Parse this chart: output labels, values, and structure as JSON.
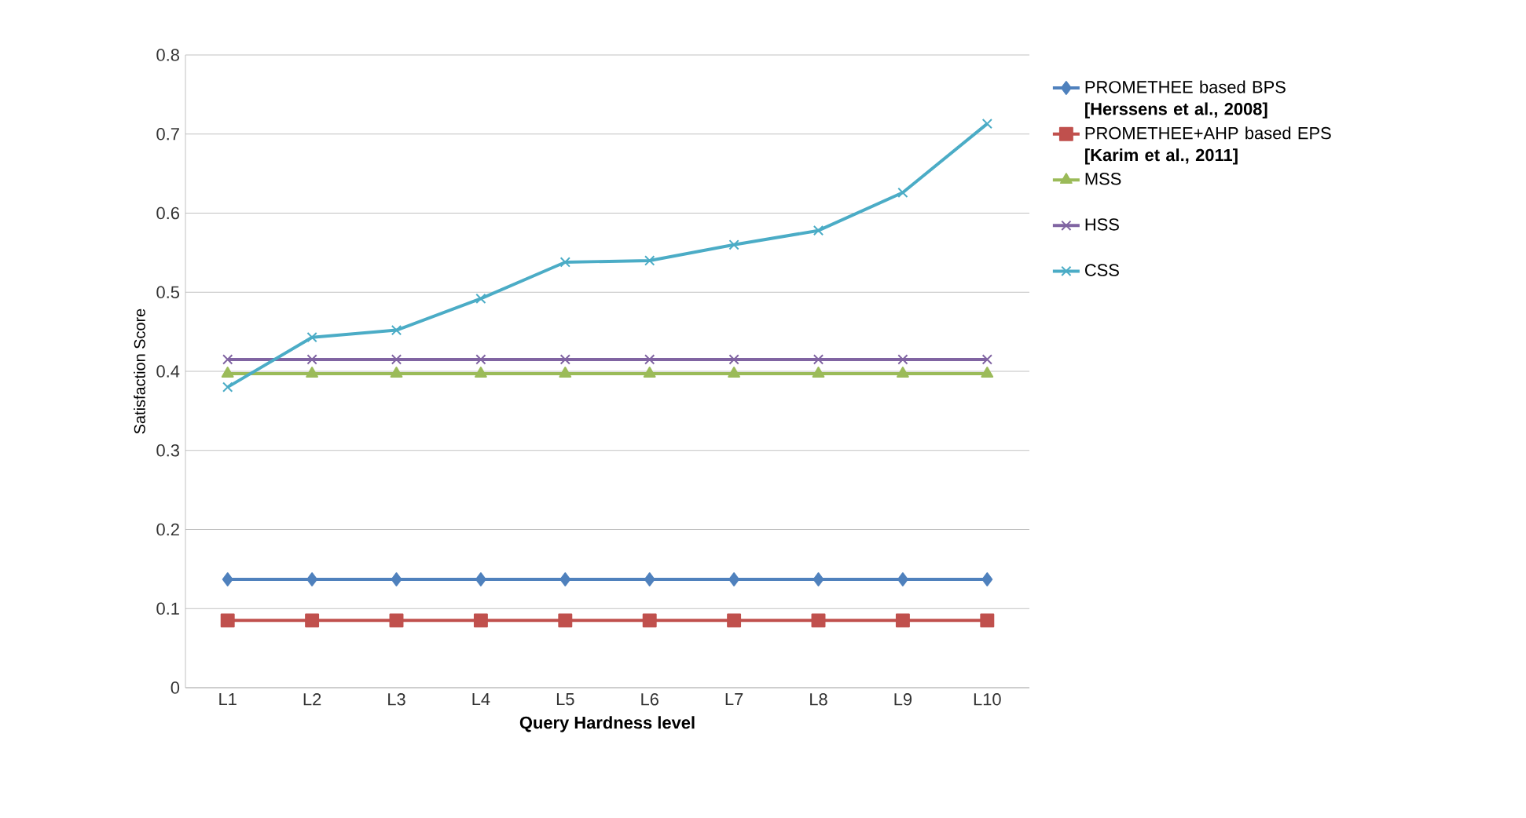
{
  "chart_data": {
    "type": "line",
    "xlabel": "Query Hardness level",
    "ylabel": "Satisfaction Score",
    "categories": [
      "L1",
      "L2",
      "L3",
      "L4",
      "L5",
      "L6",
      "L7",
      "L8",
      "L9",
      "L10"
    ],
    "series": [
      {
        "name": "PROMETHEE based BPS **[Herssens et al., 2008]**",
        "color": "#4f81bd",
        "marker": "diamond",
        "values": [
          0.137,
          0.137,
          0.137,
          0.137,
          0.137,
          0.137,
          0.137,
          0.137,
          0.137,
          0.137
        ]
      },
      {
        "name": "PROMETHEE+AHP based EPS **[Karim et al., 2011]**",
        "color": "#c0504d",
        "marker": "square",
        "values": [
          0.085,
          0.085,
          0.085,
          0.085,
          0.085,
          0.085,
          0.085,
          0.085,
          0.085,
          0.085
        ]
      },
      {
        "name": "MSS",
        "color": "#9bbb59",
        "marker": "triangle",
        "values": [
          0.397,
          0.397,
          0.397,
          0.397,
          0.397,
          0.397,
          0.397,
          0.397,
          0.397,
          0.397
        ]
      },
      {
        "name": "HSS",
        "color": "#8064a2",
        "marker": "cross",
        "values": [
          0.415,
          0.415,
          0.415,
          0.415,
          0.415,
          0.415,
          0.415,
          0.415,
          0.415,
          0.415
        ]
      },
      {
        "name": "CSS",
        "color": "#4bacc6",
        "marker": "cross",
        "values": [
          0.38,
          0.443,
          0.452,
          0.492,
          0.538,
          0.54,
          0.56,
          0.578,
          0.626,
          0.713
        ]
      }
    ],
    "ylim": [
      0,
      0.8
    ],
    "yticks": [
      0,
      0.1,
      0.2,
      0.3,
      0.4,
      0.5,
      0.6,
      0.7,
      0.8
    ],
    "grid": "y",
    "legend": "right",
    "line_style": "solid"
  }
}
